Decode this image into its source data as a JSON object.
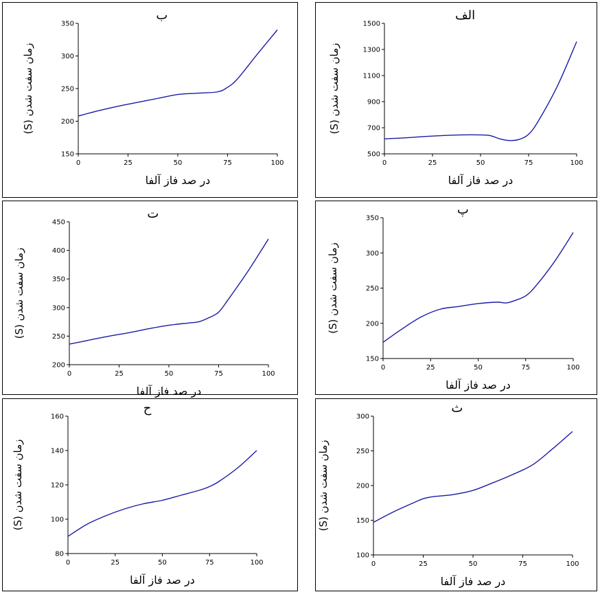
{
  "chart_data": [
    {
      "id": "b",
      "type": "line",
      "title": "ب",
      "xlabel": "در صد فاز آلفا",
      "ylabel": "زمان سفت شدن (S)",
      "xlim": [
        0,
        100
      ],
      "ylim": [
        150,
        350
      ],
      "xticks": [
        0,
        25,
        50,
        75,
        100
      ],
      "yticks": [
        150,
        200,
        250,
        300,
        350
      ],
      "x": [
        0,
        10,
        20,
        30,
        40,
        50,
        60,
        70,
        75,
        80,
        90,
        100
      ],
      "y": [
        208,
        216,
        223,
        229,
        235,
        241,
        243,
        245,
        252,
        265,
        303,
        340
      ]
    },
    {
      "id": "alef",
      "type": "line",
      "title": "الف",
      "xlabel": "در صد فاز آلفا",
      "ylabel": "زمان سفت شدن (S)",
      "xlim": [
        0,
        100
      ],
      "ylim": [
        500,
        1500
      ],
      "xticks": [
        0,
        25,
        50,
        75,
        100
      ],
      "yticks": [
        500,
        700,
        900,
        1100,
        1300,
        1500
      ],
      "x": [
        0,
        10,
        20,
        30,
        40,
        50,
        55,
        60,
        65,
        70,
        75,
        80,
        90,
        100
      ],
      "y": [
        615,
        622,
        632,
        640,
        645,
        645,
        640,
        615,
        602,
        610,
        650,
        750,
        1020,
        1360
      ]
    },
    {
      "id": "t",
      "type": "line",
      "title": "ت",
      "xlabel": "در صد فاز آلفا",
      "ylabel": "زمان سفت شدن (S)",
      "xlim": [
        0,
        100
      ],
      "ylim": [
        200,
        450
      ],
      "xticks": [
        0,
        25,
        50,
        75,
        100
      ],
      "yticks": [
        200,
        250,
        300,
        350,
        400,
        450
      ],
      "x": [
        0,
        10,
        20,
        30,
        40,
        50,
        60,
        65,
        70,
        75,
        80,
        90,
        100
      ],
      "y": [
        236,
        243,
        250,
        256,
        263,
        269,
        273,
        275,
        282,
        292,
        315,
        365,
        420
      ]
    },
    {
      "id": "p",
      "type": "line",
      "title": "پ",
      "xlabel": "در صد فاز آلفا",
      "ylabel": "زمان سفت شدن (S)",
      "xlim": [
        0,
        100
      ],
      "ylim": [
        150,
        350
      ],
      "xticks": [
        0,
        25,
        50,
        75,
        100
      ],
      "yticks": [
        150,
        200,
        250,
        300,
        350
      ],
      "x": [
        0,
        10,
        20,
        30,
        40,
        50,
        60,
        65,
        70,
        75,
        80,
        90,
        100
      ],
      "y": [
        173,
        192,
        209,
        220,
        224,
        228,
        230,
        229,
        233,
        239,
        252,
        287,
        329
      ]
    },
    {
      "id": "h",
      "type": "line",
      "title": "ح",
      "xlabel": "در صد فاز آلفا",
      "ylabel": "زمان سفت شدن (S)",
      "xlim": [
        0,
        100
      ],
      "ylim": [
        80,
        160
      ],
      "xticks": [
        0,
        25,
        50,
        75,
        100
      ],
      "yticks": [
        80,
        100,
        120,
        140,
        160
      ],
      "x": [
        0,
        10,
        20,
        30,
        40,
        50,
        60,
        70,
        75,
        80,
        90,
        100
      ],
      "y": [
        90,
        97,
        102,
        106,
        109,
        111,
        114,
        117,
        119,
        122,
        130,
        140
      ]
    },
    {
      "id": "th",
      "type": "line",
      "title": "ث",
      "xlabel": "در صد فاز آلفا",
      "ylabel": "زمان سفت شدن (S)",
      "xlim": [
        0,
        100
      ],
      "ylim": [
        100,
        300
      ],
      "xticks": [
        0,
        25,
        50,
        75,
        100
      ],
      "yticks": [
        100,
        150,
        200,
        250,
        300
      ],
      "x": [
        0,
        10,
        20,
        25,
        30,
        40,
        50,
        60,
        70,
        80,
        90,
        100
      ],
      "y": [
        147,
        162,
        175,
        181,
        184,
        187,
        193,
        204,
        216,
        230,
        253,
        278
      ]
    }
  ]
}
